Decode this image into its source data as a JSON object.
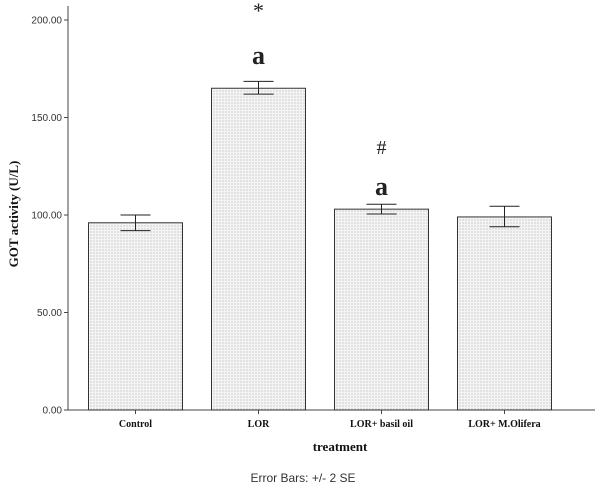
{
  "chart_data": {
    "type": "bar",
    "categories": [
      "Control",
      "LOR",
      "LOR+ basil oil",
      "LOR+ M.Olifera"
    ],
    "values": [
      96,
      165,
      103,
      99
    ],
    "error_bars": {
      "type": "+/- 2 SE",
      "lower": [
        92,
        162,
        100.5,
        94
      ],
      "upper": [
        100,
        168.5,
        105.5,
        104.5
      ]
    },
    "annotations": [
      {
        "category": "LOR",
        "symbol": "*",
        "y": 205
      },
      {
        "category": "LOR",
        "symbol": "a",
        "y": 182
      },
      {
        "category": "LOR+ basil oil",
        "symbol": "#",
        "y": 135
      },
      {
        "category": "LOR+ basil oil",
        "symbol": "a",
        "y": 115
      }
    ],
    "title": "",
    "xlabel": "treatment",
    "ylabel": "GOT activity (U/L)",
    "ylim": [
      0,
      200
    ],
    "yticks": [
      "0.00",
      "50.00",
      "100.00",
      "150.00",
      "200.00"
    ],
    "ytick_values": [
      0,
      50,
      100,
      150,
      200
    ],
    "grid": false,
    "bar_fill": "#f4f4f4",
    "bar_dot_color": "#9a9a9a",
    "bar_stroke": "#333333"
  },
  "footnote": "Error Bars: +/- 2 SE"
}
